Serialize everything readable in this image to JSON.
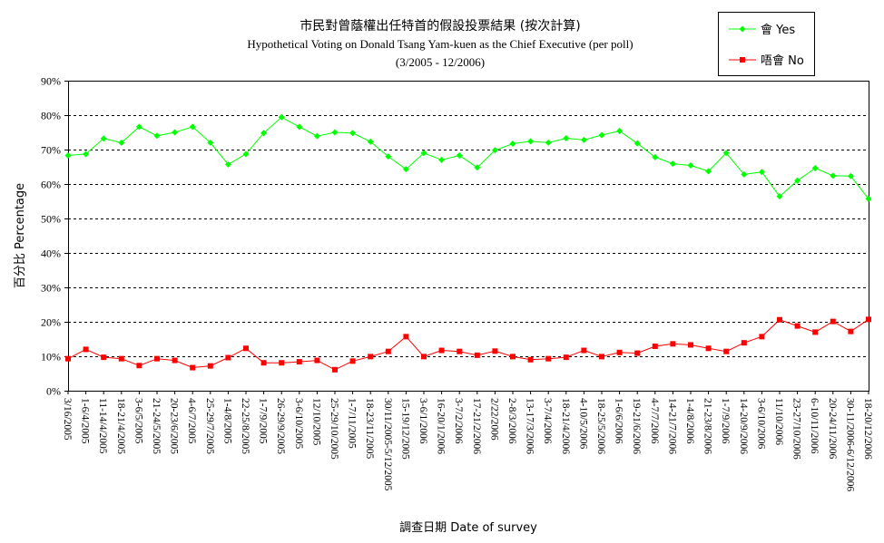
{
  "chart_data": {
    "type": "line",
    "title": "市民對曾蔭權出任特首的假設投票結果 (按次計算)",
    "subtitle": "Hypothetical Voting on Donald Tsang Yam-kuen as the Chief Executive (per poll)",
    "period": "(3/2005 - 12/2006)",
    "xlabel": "調查日期 Date of survey",
    "ylabel": "百分比 Percentage",
    "ylim": [
      0,
      90
    ],
    "yticks": [
      "0%",
      "10%",
      "20%",
      "30%",
      "40%",
      "50%",
      "60%",
      "70%",
      "80%",
      "90%"
    ],
    "grid": "horizontal dashed",
    "legend_position": "top-right",
    "categories": [
      "3/16/2005",
      "1-6/4/2005",
      "11-14/4/2005",
      "18-21/4/2005",
      "3-6/5/2005",
      "21-24/5/2005",
      "20-23/6/2005",
      "4-6/7/2005",
      "25-29/7/2005",
      "1-4/8/2005",
      "22-25/8/2005",
      "1-7/9/2005",
      "26-29/9/2005",
      "3-6/10/2005",
      "12/10/2005",
      "25-29/10/2005",
      "1-7/11/2005",
      "18-23/11/2005",
      "30/11/2005-5/12/2005",
      "15-19/12/2005",
      "3-6/1/2006",
      "16-20/1/2006",
      "3-7/2/2006",
      "17-21/2/2006",
      "2/22/2006",
      "2-8/3/2006",
      "13-17/3/2006",
      "3-7/4/2006",
      "18-21/4/2006",
      "4-10/5/2006",
      "18-25/5/2006",
      "1-6/6/2006",
      "19-21/6/2006",
      "4-7/7/2006",
      "14-21/7/2006",
      "1-4/8/2006",
      "21-23/8/2006",
      "1-7/9/2006",
      "14-20/9/2006",
      "3-6/10/2006",
      "11/10/2006",
      "23-27/10/2006",
      "6-10/11/2006",
      "20-24/11/2006",
      "30-11/2006-6/12/2006",
      "18-20/12/2006"
    ],
    "series": [
      {
        "name": "會 Yes",
        "color": "#00ff00",
        "marker": "diamond",
        "values": [
          68.3,
          68.7,
          73.2,
          72.0,
          76.6,
          74.0,
          75.0,
          76.6,
          72.0,
          65.7,
          68.7,
          74.8,
          79.4,
          76.6,
          73.9,
          75.0,
          74.8,
          72.3,
          68.0,
          64.3,
          69.0,
          67.0,
          68.3,
          64.8,
          69.8,
          71.7,
          72.4,
          72.0,
          73.3,
          72.8,
          74.2,
          75.4,
          71.8,
          67.8,
          65.9,
          65.4,
          63.7,
          69.0,
          62.8,
          63.5,
          56.4,
          61.0,
          64.6,
          62.4,
          62.3,
          55.7
        ]
      },
      {
        "name": "唔會 No",
        "color": "#ff0000",
        "marker": "square",
        "values": [
          9.3,
          12.0,
          9.7,
          9.3,
          7.3,
          9.3,
          8.8,
          6.7,
          7.2,
          9.6,
          12.3,
          8.1,
          8.1,
          8.4,
          8.8,
          6.1,
          8.6,
          9.9,
          11.4,
          15.7,
          9.9,
          11.7,
          11.4,
          10.3,
          11.5,
          9.9,
          9.0,
          9.3,
          9.7,
          11.7,
          9.9,
          11.1,
          10.9,
          12.9,
          13.6,
          13.3,
          12.3,
          11.4,
          13.9,
          15.7,
          20.6,
          18.8,
          17.0,
          20.1,
          17.2,
          20.7
        ]
      }
    ]
  }
}
